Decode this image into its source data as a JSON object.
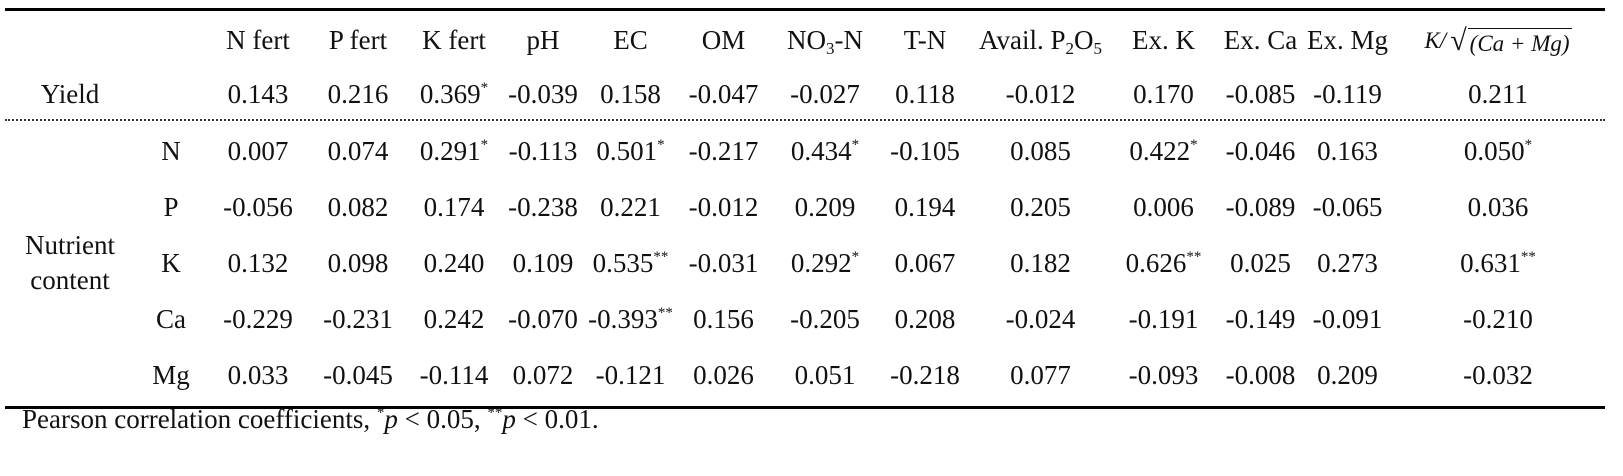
{
  "header": {
    "col_0": "",
    "col_1": "",
    "nfert": "N fert",
    "pfert": "P fert",
    "kfert": "K fert",
    "ph": "pH",
    "ec": "EC",
    "om": "OM",
    "no3_base": "NO",
    "no3_sub": "3",
    "no3_suffix": "-N",
    "tn": "T-N",
    "avail_prefix": "Avail. P",
    "avail_sub1": "2",
    "avail_o": "O",
    "avail_sub2": "5",
    "exk": "Ex. K",
    "exca": "Ex. Ca",
    "exmg": "Ex. Mg",
    "ratio_k": "K/",
    "ratio_radicand": "(Ca + Mg)"
  },
  "yield_row": {
    "label": "Yield",
    "cells": [
      {
        "v": "0.143",
        "sig": ""
      },
      {
        "v": "0.216",
        "sig": ""
      },
      {
        "v": "0.369",
        "sig": "*"
      },
      {
        "v": "-0.039",
        "sig": ""
      },
      {
        "v": "0.158",
        "sig": ""
      },
      {
        "v": "-0.047",
        "sig": ""
      },
      {
        "v": "-0.027",
        "sig": ""
      },
      {
        "v": "0.118",
        "sig": ""
      },
      {
        "v": "-0.012",
        "sig": ""
      },
      {
        "v": "0.170",
        "sig": ""
      },
      {
        "v": "-0.085",
        "sig": ""
      },
      {
        "v": "-0.119",
        "sig": ""
      },
      {
        "v": "0.211",
        "sig": ""
      }
    ]
  },
  "nutrient": {
    "group_line1": "Nutrient",
    "group_line2": "content",
    "rows": [
      {
        "label": "N",
        "cells": [
          {
            "v": "0.007",
            "sig": ""
          },
          {
            "v": "0.074",
            "sig": ""
          },
          {
            "v": "0.291",
            "sig": "*"
          },
          {
            "v": "-0.113",
            "sig": ""
          },
          {
            "v": "0.501",
            "sig": "*"
          },
          {
            "v": "-0.217",
            "sig": ""
          },
          {
            "v": "0.434",
            "sig": "*"
          },
          {
            "v": "-0.105",
            "sig": ""
          },
          {
            "v": "0.085",
            "sig": ""
          },
          {
            "v": "0.422",
            "sig": "*"
          },
          {
            "v": "-0.046",
            "sig": ""
          },
          {
            "v": "0.163",
            "sig": ""
          },
          {
            "v": "0.050",
            "sig": "*"
          }
        ]
      },
      {
        "label": "P",
        "cells": [
          {
            "v": "-0.056",
            "sig": ""
          },
          {
            "v": "0.082",
            "sig": ""
          },
          {
            "v": "0.174",
            "sig": ""
          },
          {
            "v": "-0.238",
            "sig": ""
          },
          {
            "v": "0.221",
            "sig": ""
          },
          {
            "v": "-0.012",
            "sig": ""
          },
          {
            "v": "0.209",
            "sig": ""
          },
          {
            "v": "0.194",
            "sig": ""
          },
          {
            "v": "0.205",
            "sig": ""
          },
          {
            "v": "0.006",
            "sig": ""
          },
          {
            "v": "-0.089",
            "sig": ""
          },
          {
            "v": "-0.065",
            "sig": ""
          },
          {
            "v": "0.036",
            "sig": ""
          }
        ]
      },
      {
        "label": "K",
        "cells": [
          {
            "v": "0.132",
            "sig": ""
          },
          {
            "v": "0.098",
            "sig": ""
          },
          {
            "v": "0.240",
            "sig": ""
          },
          {
            "v": "0.109",
            "sig": ""
          },
          {
            "v": "0.535",
            "sig": "**"
          },
          {
            "v": "-0.031",
            "sig": ""
          },
          {
            "v": "0.292",
            "sig": "*"
          },
          {
            "v": "0.067",
            "sig": ""
          },
          {
            "v": "0.182",
            "sig": ""
          },
          {
            "v": "0.626",
            "sig": "**"
          },
          {
            "v": "0.025",
            "sig": ""
          },
          {
            "v": "0.273",
            "sig": ""
          },
          {
            "v": "0.631",
            "sig": "**"
          }
        ]
      },
      {
        "label": "Ca",
        "cells": [
          {
            "v": "-0.229",
            "sig": ""
          },
          {
            "v": "-0.231",
            "sig": ""
          },
          {
            "v": "0.242",
            "sig": ""
          },
          {
            "v": "-0.070",
            "sig": ""
          },
          {
            "v": "-0.393",
            "sig": "**"
          },
          {
            "v": "0.156",
            "sig": ""
          },
          {
            "v": "-0.205",
            "sig": ""
          },
          {
            "v": "0.208",
            "sig": ""
          },
          {
            "v": "-0.024",
            "sig": ""
          },
          {
            "v": "-0.191",
            "sig": ""
          },
          {
            "v": "-0.149",
            "sig": ""
          },
          {
            "v": "-0.091",
            "sig": ""
          },
          {
            "v": "-0.210",
            "sig": ""
          }
        ]
      },
      {
        "label": "Mg",
        "cells": [
          {
            "v": "0.033",
            "sig": ""
          },
          {
            "v": "-0.045",
            "sig": ""
          },
          {
            "v": "-0.114",
            "sig": ""
          },
          {
            "v": "0.072",
            "sig": ""
          },
          {
            "v": "-0.121",
            "sig": ""
          },
          {
            "v": "0.026",
            "sig": ""
          },
          {
            "v": "0.051",
            "sig": ""
          },
          {
            "v": "-0.218",
            "sig": ""
          },
          {
            "v": "0.077",
            "sig": ""
          },
          {
            "v": "-0.093",
            "sig": ""
          },
          {
            "v": "-0.008",
            "sig": ""
          },
          {
            "v": "0.209",
            "sig": ""
          },
          {
            "v": "-0.032",
            "sig": ""
          }
        ]
      }
    ]
  },
  "footnote": {
    "text": "Pearson correlation coefficients, ",
    "sig1": "*",
    "p1": "p",
    "cond1": " < 0.05, ",
    "sig2": "**",
    "p2": "p",
    "cond2": " < 0.01."
  }
}
